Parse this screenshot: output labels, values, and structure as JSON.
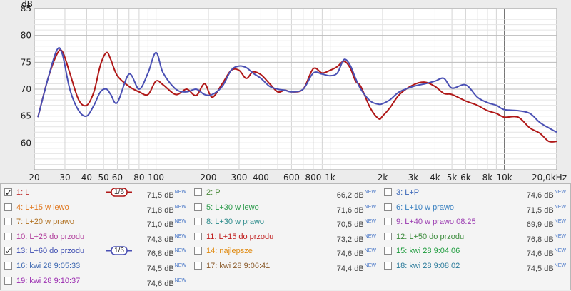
{
  "chart_data": {
    "type": "line",
    "xlabel": "",
    "ylabel": "dB",
    "x_scale": "log",
    "xlim": [
      20,
      20000
    ],
    "ylim": [
      55,
      85
    ],
    "grid": true,
    "y_ticks": [
      60,
      65,
      70,
      75,
      80,
      85
    ],
    "x_ticks": [
      {
        "v": 20,
        "label": "20"
      },
      {
        "v": 30,
        "label": "30"
      },
      {
        "v": 40,
        "label": "40"
      },
      {
        "v": 50,
        "label": "50"
      },
      {
        "v": 60,
        "label": "60"
      },
      {
        "v": 80,
        "label": "80"
      },
      {
        "v": 100,
        "label": "100"
      },
      {
        "v": 200,
        "label": "200"
      },
      {
        "v": 300,
        "label": "300"
      },
      {
        "v": 400,
        "label": "400"
      },
      {
        "v": 600,
        "label": "600"
      },
      {
        "v": 800,
        "label": "800"
      },
      {
        "v": 1000,
        "label": "1k"
      },
      {
        "v": 2000,
        "label": "2k"
      },
      {
        "v": 3000,
        "label": "3k"
      },
      {
        "v": 4000,
        "label": "4k"
      },
      {
        "v": 5000,
        "label": "5k"
      },
      {
        "v": 6000,
        "label": "6k"
      },
      {
        "v": 8000,
        "label": "8k"
      },
      {
        "v": 10000,
        "label": "10k"
      },
      {
        "v": 20000,
        "label": "20,0kHz"
      }
    ],
    "series": [
      {
        "name": "1: L",
        "color": "#b01818",
        "x": [
          21,
          24,
          27,
          29,
          32,
          36,
          40,
          44,
          48,
          52,
          55,
          60,
          70,
          80,
          90,
          100,
          110,
          130,
          150,
          170,
          190,
          210,
          240,
          270,
          300,
          330,
          360,
          400,
          450,
          500,
          550,
          600,
          700,
          800,
          900,
          1000,
          1100,
          1200,
          1300,
          1400,
          1500,
          1700,
          1900,
          2000,
          2200,
          2500,
          3000,
          3500,
          4000,
          4500,
          5000,
          6000,
          7000,
          8000,
          9000,
          10000,
          12000,
          14000,
          16000,
          18000,
          20000
        ],
        "y": [
          64.8,
          72,
          76.5,
          77,
          73,
          68,
          67,
          69.5,
          74.5,
          76.8,
          75.5,
          72.5,
          70.5,
          69.5,
          69,
          71.5,
          70.8,
          69,
          70,
          68.8,
          71,
          68.5,
          71,
          73.5,
          73.5,
          72,
          73.2,
          72.7,
          71,
          69.5,
          69.8,
          69.5,
          70,
          73.8,
          73,
          73.5,
          74.2,
          75.2,
          74,
          71.5,
          70.5,
          66.5,
          64.5,
          65,
          66.5,
          69,
          70.8,
          71.3,
          70.5,
          69.2,
          69,
          67.8,
          67,
          66,
          65.5,
          64.8,
          64.8,
          62.8,
          61.8,
          60.3,
          60.3
        ]
      },
      {
        "name": "13: L+60 do przodu",
        "color": "#4a50b4",
        "x": [
          21,
          24,
          27,
          29,
          32,
          36,
          40,
          44,
          48,
          52,
          55,
          60,
          70,
          80,
          90,
          100,
          110,
          130,
          150,
          170,
          190,
          210,
          240,
          270,
          300,
          330,
          360,
          400,
          450,
          500,
          550,
          600,
          700,
          800,
          900,
          1000,
          1100,
          1200,
          1300,
          1400,
          1500,
          1700,
          1900,
          2000,
          2200,
          2500,
          3000,
          3500,
          4000,
          4500,
          5000,
          6000,
          7000,
          8000,
          9000,
          10000,
          12000,
          14000,
          16000,
          18000,
          20000
        ],
        "y": [
          64.8,
          72,
          77.3,
          76.5,
          70,
          66,
          65,
          67,
          69.5,
          70,
          69,
          67.5,
          72.8,
          70,
          73,
          76.8,
          73,
          70,
          69.5,
          70,
          69,
          69,
          70.5,
          73.5,
          74.3,
          74,
          73,
          72,
          70.5,
          70,
          69.8,
          69.5,
          70,
          73,
          72.8,
          72.5,
          73,
          75.5,
          74.5,
          72,
          70,
          67.8,
          67.2,
          67.3,
          68,
          69.5,
          70.5,
          71,
          71.5,
          72,
          70.2,
          70.8,
          68.5,
          67.5,
          67,
          66.2,
          66,
          65.5,
          63.8,
          62.8,
          62
        ]
      }
    ]
  },
  "legend": {
    "items": [
      {
        "label": "1: L",
        "value": "71,5 dB",
        "badge": "NEW",
        "color": "#c03030",
        "checked": true,
        "smooth": "1/6",
        "smooth_color": "#b01818"
      },
      {
        "label": "2: P",
        "value": "66,2 dB",
        "badge": "NEW",
        "color": "#4a8a3a",
        "checked": false
      },
      {
        "label": "3: L+P",
        "value": "74,6 dB",
        "badge": "NEW",
        "color": "#3a66b8",
        "checked": false
      },
      {
        "label": "4: L+15 w lewo",
        "value": "71,8 dB",
        "badge": "NEW",
        "color": "#e07820",
        "checked": false
      },
      {
        "label": "5: L+30 w lewo",
        "value": "71,6 dB",
        "badge": "NEW",
        "color": "#2a9a4a",
        "checked": false
      },
      {
        "label": "6: L+10 w prawo",
        "value": "71,5 dB",
        "badge": "NEW",
        "color": "#3a80c0",
        "checked": false
      },
      {
        "label": "7: L+20 w prawo",
        "value": "71,0 dB",
        "badge": "NEW",
        "color": "#b07020",
        "checked": false
      },
      {
        "label": "8: L+30 w prawo",
        "value": "70,5 dB",
        "badge": "NEW",
        "color": "#2a8a8a",
        "checked": false
      },
      {
        "label": "9: L+40 w prawo:08:25",
        "value": "69,9 dB",
        "badge": "NEW",
        "color": "#9a3ab0",
        "checked": false
      },
      {
        "label": "10: L+25 do przodu",
        "value": "74,3 dB",
        "badge": "NEW",
        "color": "#b03a9a",
        "checked": false
      },
      {
        "label": "11: L+15 do przodu",
        "value": "73,2 dB",
        "badge": "NEW",
        "color": "#c02020",
        "checked": false
      },
      {
        "label": "12: L+50 do przodu",
        "value": "76,8 dB",
        "badge": "NEW",
        "color": "#3a8a3a",
        "checked": false
      },
      {
        "label": "13: L+60 do przodu",
        "value": "76,8 dB",
        "badge": "NEW",
        "color": "#3a4ab0",
        "checked": true,
        "smooth": "1/6",
        "smooth_color": "#4a50b4"
      },
      {
        "label": "14: najlepsze",
        "value": "74,6 dB",
        "badge": "NEW",
        "color": "#e08a10",
        "checked": false
      },
      {
        "label": "15: kwi 28 9:04:06",
        "value": "74,6 dB",
        "badge": "NEW",
        "color": "#1a9a3a",
        "checked": false
      },
      {
        "label": "16: kwi 28 9:05:33",
        "value": "74,5 dB",
        "badge": "NEW",
        "color": "#3a66b0",
        "checked": false
      },
      {
        "label": "17: kwi 28 9:06:41",
        "value": "74,4 dB",
        "badge": "NEW",
        "color": "#8a5a2a",
        "checked": false
      },
      {
        "label": "18: kwi 28 9:08:02",
        "value": "74,5 dB",
        "badge": "NEW",
        "color": "#2a7a9a",
        "checked": false
      },
      {
        "label": "19: kwi 28 9:10:37",
        "value": "74,6 dB",
        "badge": "NEW",
        "color": "#9a2ab0",
        "checked": false
      }
    ]
  }
}
